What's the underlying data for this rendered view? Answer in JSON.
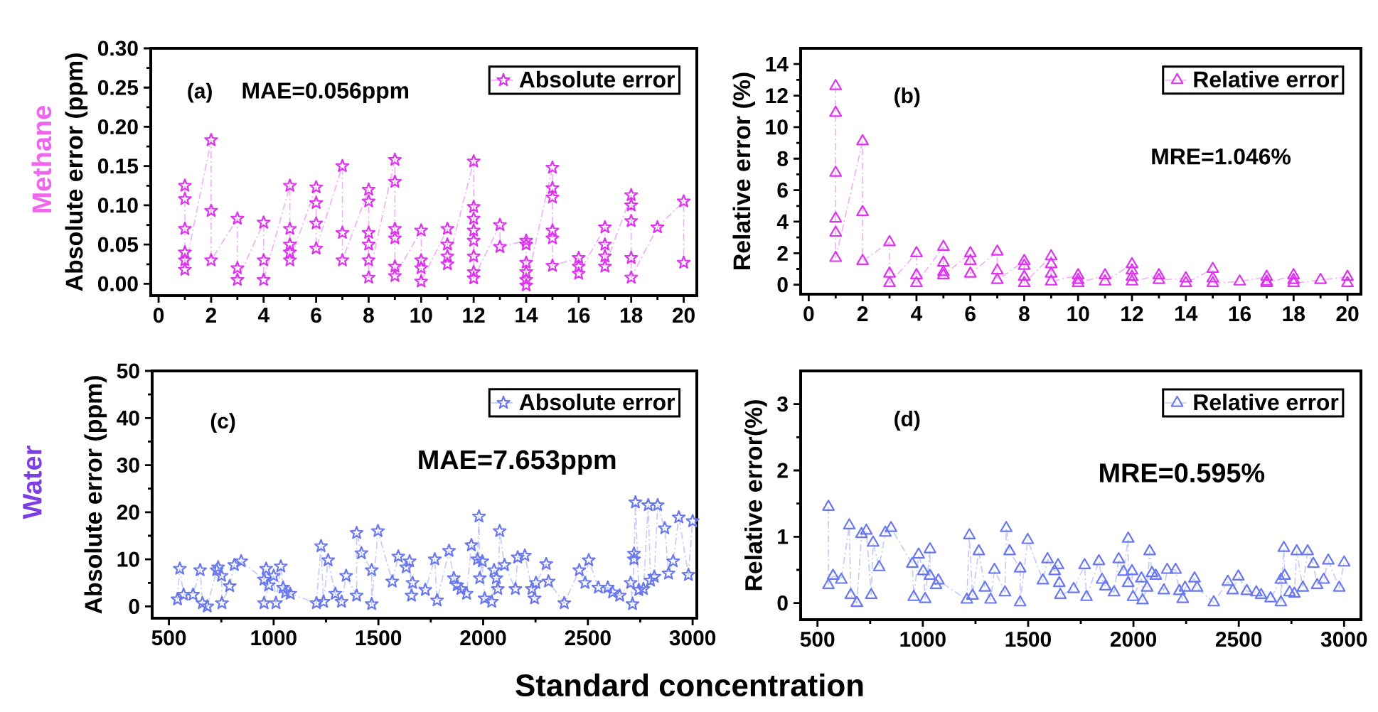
{
  "chart_data": [
    {
      "type": "line",
      "ylabel": "Absolute error (ppm)",
      "annotations": [
        "(a)",
        "MAE=0.056ppm",
        "Methane"
      ],
      "xlim": [
        -0.3,
        20.5
      ],
      "ylim": [
        -0.015,
        0.3
      ],
      "xticks": [
        0,
        2,
        4,
        6,
        8,
        10,
        12,
        14,
        16,
        18,
        20
      ],
      "yticks": [
        {
          "value": 0,
          "label": "0.00"
        },
        {
          "value": 0.05,
          "label": "0.05"
        },
        {
          "value": 0.1,
          "label": "0.10"
        },
        {
          "value": 0.15,
          "label": "0.15"
        },
        {
          "value": 0.2,
          "label": "0.20"
        },
        {
          "value": 0.25,
          "label": "0.25"
        },
        {
          "value": 0.3,
          "label": "0.30"
        }
      ],
      "legend": "top right",
      "marker": "star",
      "line_style": "dashed",
      "series": [
        {
          "name": "Absolute error",
          "color": "#dd33ee",
          "x": [
            1,
            1,
            1,
            1,
            1,
            1,
            2,
            2,
            2,
            3,
            3,
            3,
            4,
            4,
            4,
            5,
            5,
            5,
            5,
            5,
            6,
            6,
            6,
            6,
            7,
            7,
            7,
            8,
            8,
            8,
            8,
            8,
            8,
            9,
            9,
            9,
            9,
            9,
            9,
            10,
            10,
            10,
            10,
            11,
            11,
            11,
            11,
            12,
            12,
            12,
            12,
            12,
            12,
            12,
            12,
            13,
            13,
            14,
            14,
            14,
            14,
            14,
            14,
            15,
            15,
            15,
            15,
            15,
            15,
            16,
            16,
            16,
            17,
            17,
            17,
            17,
            18,
            18,
            18,
            18,
            18,
            19,
            20,
            20
          ],
          "values": [
            0.125,
            0.108,
            0.07,
            0.04,
            0.03,
            0.018,
            0.183,
            0.093,
            0.03,
            0.083,
            0.02,
            0.005,
            0.078,
            0.03,
            0.005,
            0.125,
            0.07,
            0.05,
            0.04,
            0.03,
            0.123,
            0.103,
            0.077,
            0.045,
            0.15,
            0.065,
            0.03,
            0.12,
            0.105,
            0.065,
            0.05,
            0.03,
            0.008,
            0.158,
            0.13,
            0.07,
            0.058,
            0.022,
            0.01,
            0.068,
            0.03,
            0.02,
            0.003,
            0.07,
            0.05,
            0.035,
            0.025,
            0.156,
            0.098,
            0.083,
            0.068,
            0.055,
            0.035,
            0.015,
            0.007,
            0.075,
            0.047,
            0.055,
            0.05,
            0.027,
            0.015,
            0.005,
            -0.002,
            0.148,
            0.122,
            0.11,
            0.068,
            0.058,
            0.023,
            0.033,
            0.022,
            0.013,
            0.072,
            0.05,
            0.035,
            0.022,
            0.113,
            0.1,
            0.08,
            0.033,
            0.008,
            0.072,
            0.105,
            0.027
          ]
        }
      ]
    },
    {
      "type": "line",
      "ylabel": "Relative error (%)",
      "annotations": [
        "(b)",
        "MRE=1.046%"
      ],
      "xlim": [
        -0.3,
        20.5
      ],
      "ylim": [
        -0.6,
        15
      ],
      "xticks": [
        0,
        2,
        4,
        6,
        8,
        10,
        12,
        14,
        16,
        18,
        20
      ],
      "yticks": [
        0,
        2,
        4,
        6,
        8,
        10,
        12,
        14
      ],
      "legend": "top right",
      "marker": "triangle",
      "line_style": "dashed",
      "series": [
        {
          "name": "Relative error",
          "color": "#dd33ee",
          "x": [
            1,
            1,
            1,
            1,
            1,
            1,
            2,
            2,
            2,
            3,
            3,
            3,
            4,
            4,
            4,
            5,
            5,
            5,
            5,
            6,
            6,
            6,
            7,
            7,
            7,
            8,
            8,
            8,
            8,
            9,
            9,
            9,
            9,
            10,
            10,
            10,
            11,
            11,
            12,
            12,
            12,
            12,
            13,
            13,
            14,
            14,
            15,
            15,
            15,
            16,
            17,
            17,
            17,
            18,
            18,
            18,
            19,
            20,
            20
          ],
          "values": [
            12.6,
            10.9,
            7.1,
            4.2,
            3.3,
            1.7,
            9.1,
            4.6,
            1.5,
            2.7,
            0.7,
            0.1,
            2.0,
            0.6,
            0.1,
            2.4,
            1.4,
            0.8,
            0.6,
            2.0,
            1.5,
            0.7,
            2.1,
            0.9,
            0.3,
            1.5,
            1.2,
            0.5,
            0.1,
            1.8,
            1.3,
            0.7,
            0.2,
            0.6,
            0.3,
            0.1,
            0.6,
            0.2,
            1.3,
            0.9,
            0.5,
            0.2,
            0.6,
            0.3,
            0.4,
            0.1,
            1.0,
            0.4,
            0.1,
            0.2,
            0.5,
            0.2,
            0.1,
            0.6,
            0.3,
            0.1,
            0.3,
            0.5,
            0.1
          ]
        }
      ]
    },
    {
      "type": "line",
      "xlabel": "Standard concentration",
      "ylabel": "Absolute error (ppm)",
      "annotations": [
        "(c)",
        "MAE=7.653ppm",
        "Water"
      ],
      "xlim": [
        420,
        3020
      ],
      "ylim": [
        -2.5,
        50
      ],
      "xticks": [
        500,
        1000,
        1500,
        2000,
        2500,
        3000
      ],
      "yticks": [
        0,
        10,
        20,
        30,
        40,
        50
      ],
      "legend": "top right",
      "marker": "star",
      "line_style": "dashed",
      "series": [
        {
          "name": "Absolute error",
          "color": "#6a78ee",
          "x": [
            541,
            552,
            570,
            615,
            649,
            660,
            683,
            728,
            735,
            751,
            753,
            790,
            812,
            845,
            954,
            964,
            954,
            977,
            1000,
            1011,
            1034,
            1045,
            1057,
            1079,
            1204,
            1226,
            1238,
            1260,
            1294,
            1324,
            1346,
            1396,
            1396,
            1419,
            1468,
            1468,
            1498,
            1566,
            1595,
            1633,
            1649,
            1658,
            1663,
            1724,
            1769,
            1780,
            1837,
            1860,
            1876,
            1894,
            1921,
            1944,
            1973,
            1980,
            1984,
            1996,
            2007,
            2041,
            2052,
            2063,
            2070,
            2079,
            2102,
            2154,
            2165,
            2199,
            2233,
            2245,
            2252,
            2301,
            2312,
            2387,
            2459,
            2486,
            2504,
            2550,
            2595,
            2618,
            2652,
            2704,
            2713,
            2720,
            2720,
            2727,
            2743,
            2765,
            2788,
            2799,
            2817,
            2833,
            2867,
            2885,
            2907,
            2934,
            2980,
            3000
          ],
          "values": [
            1.5,
            8.0,
            2.5,
            2.5,
            7.7,
            0.7,
            0,
            7.7,
            8.3,
            6.5,
            0.7,
            4.3,
            8.8,
            9.6,
            5.7,
            8,
            0.7,
            4.5,
            6.5,
            0.7,
            8.5,
            4,
            3,
            2.7,
            0.7,
            12.8,
            1,
            9.8,
            2.7,
            1,
            6.5,
            2.3,
            15.6,
            11.3,
            7.7,
            0.5,
            16,
            5.3,
            10.6,
            8.3,
            9.6,
            2.3,
            5,
            3.5,
            10,
            1.3,
            11.8,
            6,
            4.5,
            3.7,
            2.7,
            13,
            10,
            19.1,
            6,
            9.6,
            1.7,
            1,
            7.7,
            6,
            3.7,
            16,
            8.8,
            3.7,
            10.4,
            10.8,
            3.7,
            1.7,
            5,
            9,
            5.3,
            0.7,
            7.7,
            5,
            9.8,
            4,
            4,
            3,
            2.3,
            5,
            0.5,
            11.2,
            10,
            22.1,
            3.5,
            3.7,
            21.5,
            5.5,
            6.3,
            21.5,
            16.6,
            7,
            9.6,
            18.9,
            6.7,
            18.1
          ]
        }
      ]
    },
    {
      "type": "line",
      "ylabel": "Relative error(%)",
      "annotations": [
        "(d)",
        "MRE=0.595%"
      ],
      "xlim": [
        420,
        3080
      ],
      "ylim": [
        -0.25,
        3.5
      ],
      "xticks": [
        500,
        1000,
        1500,
        2000,
        2500,
        3000
      ],
      "yticks": [
        0,
        1,
        2,
        3
      ],
      "legend": "top right",
      "marker": "triangle",
      "line_style": "dashed",
      "series": [
        {
          "name": "Relative error",
          "color": "#6a78ee",
          "x": [
            552,
            552,
            574,
            613,
            651,
            658,
            687,
            709,
            732,
            755,
            764,
            793,
            822,
            849,
            950,
            957,
            980,
            1002,
            1011,
            1034,
            1034,
            1063,
            1074,
            1209,
            1221,
            1236,
            1266,
            1295,
            1322,
            1340,
            1390,
            1396,
            1412,
            1462,
            1462,
            1498,
            1570,
            1592,
            1626,
            1642,
            1648,
            1653,
            1716,
            1768,
            1777,
            1836,
            1851,
            1867,
            1908,
            1930,
            1953,
            1975,
            1975,
            1993,
            1998,
            2038,
            2043,
            2065,
            2077,
            2088,
            2106,
            2144,
            2160,
            2200,
            2218,
            2234,
            2245,
            2290,
            2302,
            2381,
            2448,
            2471,
            2498,
            2538,
            2583,
            2606,
            2651,
            2700,
            2700,
            2714,
            2718,
            2741,
            2764,
            2775,
            2804,
            2827,
            2854,
            2872,
            2903,
            2925,
            2977,
            3000
          ],
          "values": [
            1.45,
            0.27,
            0.41,
            0.35,
            1.17,
            0.12,
            0.0,
            1.04,
            1.09,
            0.12,
            0.91,
            0.54,
            1.06,
            1.13,
            0.59,
            0.09,
            0.73,
            0.48,
            0.06,
            0.81,
            0.41,
            0.27,
            0.34,
            0.05,
            1.02,
            0.11,
            0.78,
            0.23,
            0.05,
            0.5,
            0.16,
            1.13,
            0.78,
            0.52,
            0.01,
            0.95,
            0.34,
            0.66,
            0.48,
            0.57,
            0.3,
            0.12,
            0.21,
            0.57,
            0.09,
            0.63,
            0.35,
            0.25,
            0.16,
            0.66,
            0.47,
            0.97,
            0.3,
            0.48,
            0.09,
            0.37,
            0.04,
            0.23,
            0.78,
            0.45,
            0.41,
            0.19,
            0.5,
            0.5,
            0.18,
            0.06,
            0.23,
            0.37,
            0.23,
            0.01,
            0.32,
            0.19,
            0.4,
            0.18,
            0.16,
            0.12,
            0.07,
            0.35,
            0.01,
            0.83,
            0.41,
            0.16,
            0.14,
            0.78,
            0.23,
            0.78,
            0.59,
            0.27,
            0.35,
            0.64,
            0.23,
            0.61
          ]
        }
      ]
    }
  ]
}
